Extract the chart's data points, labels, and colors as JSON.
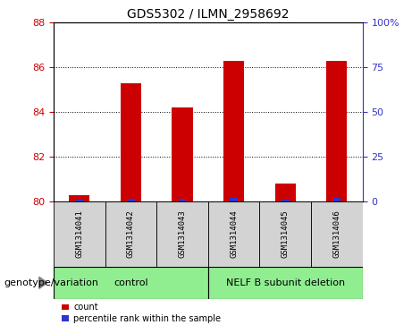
{
  "title": "GDS5302 / ILMN_2958692",
  "samples": [
    "GSM1314041",
    "GSM1314042",
    "GSM1314043",
    "GSM1314044",
    "GSM1314045",
    "GSM1314046"
  ],
  "count_values": [
    80.3,
    85.3,
    84.2,
    86.3,
    80.8,
    86.3
  ],
  "percentile_values": [
    0.8,
    1.5,
    1.5,
    2.0,
    1.0,
    2.0
  ],
  "ylim_left": [
    80,
    88
  ],
  "ylim_right": [
    0,
    100
  ],
  "yticks_left": [
    80,
    82,
    84,
    86,
    88
  ],
  "yticks_right": [
    0,
    25,
    50,
    75,
    100
  ],
  "ytick_labels_right": [
    "0",
    "25",
    "50",
    "75",
    "100%"
  ],
  "bar_color_red": "#cc0000",
  "bar_color_blue": "#3333cc",
  "red_bar_width": 0.4,
  "blue_bar_width": 0.15,
  "group_labels": [
    "control",
    "NELF B subunit deletion"
  ],
  "group_ranges": [
    [
      0,
      3
    ],
    [
      3,
      6
    ]
  ],
  "group_colors": [
    "#90ee90",
    "#90ee90"
  ],
  "genotype_label": "genotype/variation",
  "legend_items": [
    {
      "label": "count",
      "color": "#cc0000"
    },
    {
      "label": "percentile rank within the sample",
      "color": "#3333cc"
    }
  ],
  "left_axis_color": "#cc0000",
  "right_axis_color": "#3333cc",
  "sample_bg_color": "#d3d3d3",
  "sample_font_size": 6.5,
  "group_font_size": 8,
  "legend_font_size": 7,
  "title_font_size": 10,
  "genotype_font_size": 8
}
